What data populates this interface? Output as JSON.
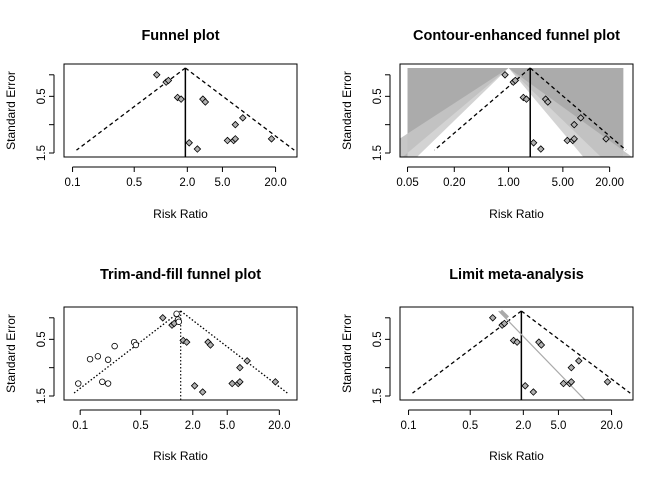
{
  "chart_data": [
    {
      "type": "scatter",
      "title": "Funnel plot",
      "xlabel": "Risk Ratio",
      "ylabel": "Standard Error",
      "x_scale": "log",
      "xlim": [
        0.08,
        35
      ],
      "ylim": [
        1.5,
        0
      ],
      "xticks": [
        "0.1",
        "0.5",
        "2.0",
        "5.0",
        "20.0"
      ],
      "xtick_values": [
        0.1,
        0.5,
        2.0,
        5.0,
        20.0
      ],
      "yticks": [
        "0.5",
        "1.5"
      ],
      "ytick_values": [
        0.5,
        1.5
      ],
      "pooled_estimate": 1.9,
      "funnel_max_se": 1.45,
      "points": [
        {
          "x": 0.9,
          "y": 0.12
        },
        {
          "x": 1.15,
          "y": 0.25
        },
        {
          "x": 1.22,
          "y": 0.22
        },
        {
          "x": 1.55,
          "y": 0.52
        },
        {
          "x": 1.7,
          "y": 0.55
        },
        {
          "x": 3.0,
          "y": 0.55
        },
        {
          "x": 3.2,
          "y": 0.6
        },
        {
          "x": 7.0,
          "y": 1.0
        },
        {
          "x": 8.5,
          "y": 0.88
        },
        {
          "x": 5.7,
          "y": 1.28
        },
        {
          "x": 6.7,
          "y": 1.28
        },
        {
          "x": 7.0,
          "y": 1.25
        },
        {
          "x": 18.0,
          "y": 1.25
        },
        {
          "x": 2.1,
          "y": 1.32
        },
        {
          "x": 2.6,
          "y": 1.43
        }
      ]
    },
    {
      "type": "scatter",
      "title": "Contour-enhanced funnel plot",
      "xlabel": "Risk Ratio",
      "ylabel": "Standard Error",
      "x_scale": "log",
      "xlim": [
        0.04,
        40
      ],
      "ylim": [
        1.5,
        0
      ],
      "xticks": [
        "0.05",
        "0.20",
        "1.00",
        "5.00",
        "20.00"
      ],
      "xtick_values": [
        0.05,
        0.2,
        1.0,
        5.0,
        20.0
      ],
      "yticks": [
        "0.5",
        "1.5"
      ],
      "ytick_values": [
        0.5,
        1.5
      ],
      "pooled_estimate": 1.9,
      "funnel_max_se": 1.45,
      "contour_levels": [
        "0.1",
        "0.05",
        "0.01"
      ],
      "points": [
        {
          "x": 0.9,
          "y": 0.12
        },
        {
          "x": 1.15,
          "y": 0.25
        },
        {
          "x": 1.22,
          "y": 0.22
        },
        {
          "x": 1.55,
          "y": 0.52
        },
        {
          "x": 1.7,
          "y": 0.55
        },
        {
          "x": 3.0,
          "y": 0.55
        },
        {
          "x": 3.2,
          "y": 0.6
        },
        {
          "x": 7.0,
          "y": 1.0
        },
        {
          "x": 8.5,
          "y": 0.88
        },
        {
          "x": 5.7,
          "y": 1.28
        },
        {
          "x": 6.7,
          "y": 1.28
        },
        {
          "x": 7.0,
          "y": 1.25
        },
        {
          "x": 18.0,
          "y": 1.25
        },
        {
          "x": 2.1,
          "y": 1.32
        },
        {
          "x": 2.6,
          "y": 1.43
        }
      ]
    },
    {
      "type": "scatter",
      "title": "Trim-and-fill funnel plot",
      "xlabel": "Risk Ratio",
      "ylabel": "Standard Error",
      "x_scale": "log",
      "xlim": [
        0.065,
        32
      ],
      "ylim": [
        1.5,
        0
      ],
      "xticks": [
        "0.1",
        "0.5",
        "2.0",
        "5.0",
        "20.0"
      ],
      "xtick_values": [
        0.1,
        0.5,
        2.0,
        5.0,
        20.0
      ],
      "yticks": [
        "0.5",
        "1.5"
      ],
      "ytick_values": [
        0.5,
        1.5
      ],
      "pooled_estimate": 1.45,
      "funnel_max_se": 1.45,
      "points_observed": [
        {
          "x": 0.9,
          "y": 0.12
        },
        {
          "x": 1.15,
          "y": 0.25
        },
        {
          "x": 1.22,
          "y": 0.22
        },
        {
          "x": 1.55,
          "y": 0.52
        },
        {
          "x": 1.7,
          "y": 0.55
        },
        {
          "x": 3.0,
          "y": 0.55
        },
        {
          "x": 3.2,
          "y": 0.6
        },
        {
          "x": 7.0,
          "y": 1.0
        },
        {
          "x": 8.5,
          "y": 0.88
        },
        {
          "x": 5.7,
          "y": 1.28
        },
        {
          "x": 6.7,
          "y": 1.28
        },
        {
          "x": 7.0,
          "y": 1.25
        },
        {
          "x": 18.0,
          "y": 1.25
        },
        {
          "x": 2.1,
          "y": 1.32
        },
        {
          "x": 2.6,
          "y": 1.43
        }
      ],
      "points_filled": [
        {
          "x": 0.095,
          "y": 1.28
        },
        {
          "x": 0.16,
          "y": 0.8
        },
        {
          "x": 0.18,
          "y": 1.25
        },
        {
          "x": 0.21,
          "y": 1.28
        },
        {
          "x": 0.25,
          "y": 0.62
        },
        {
          "x": 0.42,
          "y": 0.55
        },
        {
          "x": 1.3,
          "y": 0.05
        },
        {
          "x": 1.35,
          "y": 0.15
        },
        {
          "x": 1.38,
          "y": 0.19
        },
        {
          "x": 0.44,
          "y": 0.6
        },
        {
          "x": 0.21,
          "y": 0.86
        },
        {
          "x": 0.13,
          "y": 0.85
        }
      ]
    },
    {
      "type": "scatter",
      "title": "Limit meta-analysis",
      "xlabel": "Risk Ratio",
      "ylabel": "Standard Error",
      "x_scale": "log",
      "xlim": [
        0.08,
        35
      ],
      "ylim": [
        1.5,
        0
      ],
      "xticks": [
        "0.1",
        "0.5",
        "2.0",
        "5.0",
        "20.0"
      ],
      "xtick_values": [
        0.1,
        0.5,
        2.0,
        5.0,
        20.0
      ],
      "yticks": [
        "0.5",
        "1.5"
      ],
      "ytick_values": [
        0.5,
        1.5
      ],
      "pooled_estimate": 1.9,
      "funnel_max_se": 1.45,
      "limit_line": {
        "x": [
          1.05,
          10.5
        ],
        "y": [
          0.0,
          1.5
        ]
      },
      "points": [
        {
          "x": 0.9,
          "y": 0.12
        },
        {
          "x": 1.15,
          "y": 0.25
        },
        {
          "x": 1.22,
          "y": 0.22
        },
        {
          "x": 1.55,
          "y": 0.52
        },
        {
          "x": 1.7,
          "y": 0.55
        },
        {
          "x": 3.0,
          "y": 0.55
        },
        {
          "x": 3.2,
          "y": 0.6
        },
        {
          "x": 7.0,
          "y": 1.0
        },
        {
          "x": 8.5,
          "y": 0.88
        },
        {
          "x": 5.7,
          "y": 1.28
        },
        {
          "x": 6.7,
          "y": 1.28
        },
        {
          "x": 7.0,
          "y": 1.25
        },
        {
          "x": 18.0,
          "y": 1.25
        },
        {
          "x": 2.1,
          "y": 1.32
        },
        {
          "x": 2.6,
          "y": 1.43
        }
      ]
    }
  ],
  "colors": {
    "point_fill": "#b0b0b0",
    "contour_light": "#d3d3d3",
    "contour_mid": "#b5b5b5",
    "contour_dark": "#999999",
    "limit_line": "#aaaaaa"
  }
}
